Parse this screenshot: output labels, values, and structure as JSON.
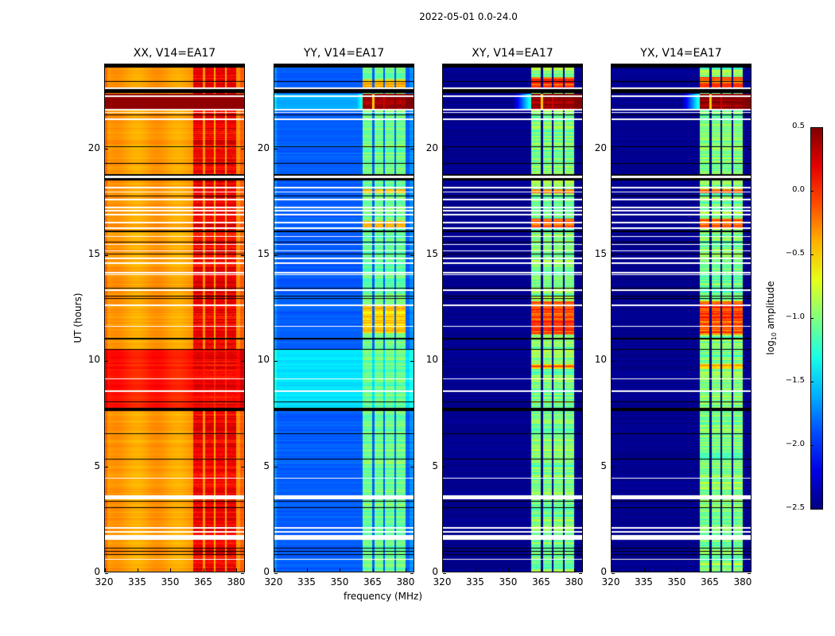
{
  "chart_data": {
    "type": "heatmap",
    "title": "2022-05-01 0.0-24.0",
    "xlabel": "frequency (MHz)",
    "ylabel": "UT (hours)",
    "xlim": [
      320,
      384
    ],
    "ylim": [
      0,
      24
    ],
    "xticks": [
      "320",
      "335",
      "350",
      "365",
      "380"
    ],
    "xtick_values": [
      320,
      335,
      350,
      365,
      380
    ],
    "yticks": [
      "0",
      "5",
      "10",
      "15",
      "20"
    ],
    "ytick_values": [
      0,
      5,
      10,
      15,
      20
    ],
    "colormap": "jet",
    "colorbar": {
      "label_main": "log",
      "label_sub": "10",
      "label_rest": " amplitude",
      "range": [
        -2.5,
        0.5
      ],
      "ticks": [
        "0.5",
        "0.0",
        "−0.5",
        "−1.0",
        "−1.5",
        "−2.0",
        "−2.5"
      ],
      "tick_values": [
        0.5,
        0.0,
        -0.5,
        -1.0,
        -1.5,
        -2.0,
        -2.5
      ]
    },
    "rfi_bands_mhz": [
      [
        360.5,
        365
      ],
      [
        366,
        370
      ],
      [
        371,
        375.2
      ],
      [
        376,
        380.2
      ]
    ],
    "flagged_white_hours": [
      [
        22.82,
        22.9
      ],
      [
        22.45,
        22.53
      ],
      [
        21.83,
        21.9
      ],
      [
        21.69,
        21.75
      ],
      [
        21.35,
        21.43
      ],
      [
        18.62,
        18.72
      ],
      [
        18.15,
        18.22
      ],
      [
        17.94,
        18.0
      ],
      [
        17.56,
        17.66
      ],
      [
        17.19,
        17.25
      ],
      [
        17.04,
        17.1
      ],
      [
        16.85,
        16.92
      ],
      [
        16.49,
        16.55
      ],
      [
        16.23,
        16.29
      ],
      [
        15.82,
        15.88
      ],
      [
        15.45,
        15.51
      ],
      [
        15.15,
        15.21
      ],
      [
        14.8,
        14.86
      ],
      [
        14.57,
        14.63
      ],
      [
        14.1,
        14.17
      ],
      [
        14.02,
        14.06
      ],
      [
        13.29,
        13.35
      ],
      [
        12.57,
        12.63
      ],
      [
        11.6,
        11.64
      ],
      [
        9.1,
        9.14
      ],
      [
        8.5,
        8.56
      ],
      [
        4.4,
        4.45
      ],
      [
        3.43,
        3.62
      ],
      [
        2.05,
        2.1
      ],
      [
        1.85,
        1.9
      ],
      [
        1.5,
        1.72
      ],
      [
        0.55,
        0.6
      ]
    ],
    "flagged_black_hours": [
      [
        23.85,
        24.0
      ],
      [
        23.17,
        23.22
      ],
      [
        22.65,
        22.82
      ],
      [
        21.58,
        21.63
      ],
      [
        20.08,
        20.12
      ],
      [
        19.3,
        19.34
      ],
      [
        18.5,
        18.8
      ],
      [
        17.75,
        17.79
      ],
      [
        16.08,
        16.12
      ],
      [
        15.58,
        15.62
      ],
      [
        15.0,
        15.04
      ],
      [
        13.4,
        13.44
      ],
      [
        13.0,
        13.04
      ],
      [
        12.9,
        12.94
      ],
      [
        11.0,
        11.06
      ],
      [
        10.5,
        10.54
      ],
      [
        8.0,
        8.04
      ],
      [
        7.6,
        7.75
      ],
      [
        6.5,
        6.54
      ],
      [
        5.3,
        5.34
      ],
      [
        3.3,
        3.35
      ],
      [
        3.0,
        3.04
      ],
      [
        1.1,
        1.14
      ],
      [
        0.95,
        0.99
      ],
      [
        0.8,
        0.84
      ]
    ],
    "panels": [
      {
        "title": "XX, V14=EA17",
        "base": -0.35,
        "rfi": 0.15,
        "high_epochs": [
          [
            7.75,
            10.5,
            0.05
          ],
          [
            21.9,
            22.6,
            0.45
          ]
        ],
        "rfi_peaks": []
      },
      {
        "title": "YY, V14=EA17",
        "base": -1.85,
        "rfi": -1.05,
        "high_epochs": [
          [
            7.75,
            10.5,
            -1.45
          ],
          [
            21.9,
            22.6,
            -1.6
          ]
        ],
        "rfi_peaks": [
          [
            21.9,
            22.6,
            0.45
          ],
          [
            22.9,
            23.3,
            -0.4
          ],
          [
            11.3,
            12.6,
            -0.5
          ],
          [
            16.3,
            16.6,
            -0.4
          ],
          [
            17.9,
            18.1,
            -0.4
          ]
        ]
      },
      {
        "title": "XY, V14=EA17",
        "base": -2.45,
        "rfi": -1.0,
        "high_epochs": [],
        "rfi_peaks": [
          [
            21.9,
            22.6,
            0.5
          ],
          [
            22.9,
            23.4,
            -0.1
          ],
          [
            11.2,
            12.8,
            -0.1
          ],
          [
            16.3,
            16.7,
            -0.2
          ],
          [
            17.9,
            18.1,
            -0.2
          ],
          [
            9.6,
            9.8,
            -0.3
          ]
        ]
      },
      {
        "title": "YX, V14=EA17",
        "base": -2.45,
        "rfi": -1.0,
        "high_epochs": [],
        "rfi_peaks": [
          [
            21.9,
            22.6,
            0.5
          ],
          [
            22.9,
            23.4,
            -0.1
          ],
          [
            11.2,
            12.8,
            -0.1
          ],
          [
            16.3,
            16.7,
            -0.2
          ],
          [
            17.9,
            18.1,
            -0.2
          ],
          [
            9.6,
            9.8,
            -0.3
          ]
        ]
      }
    ]
  }
}
